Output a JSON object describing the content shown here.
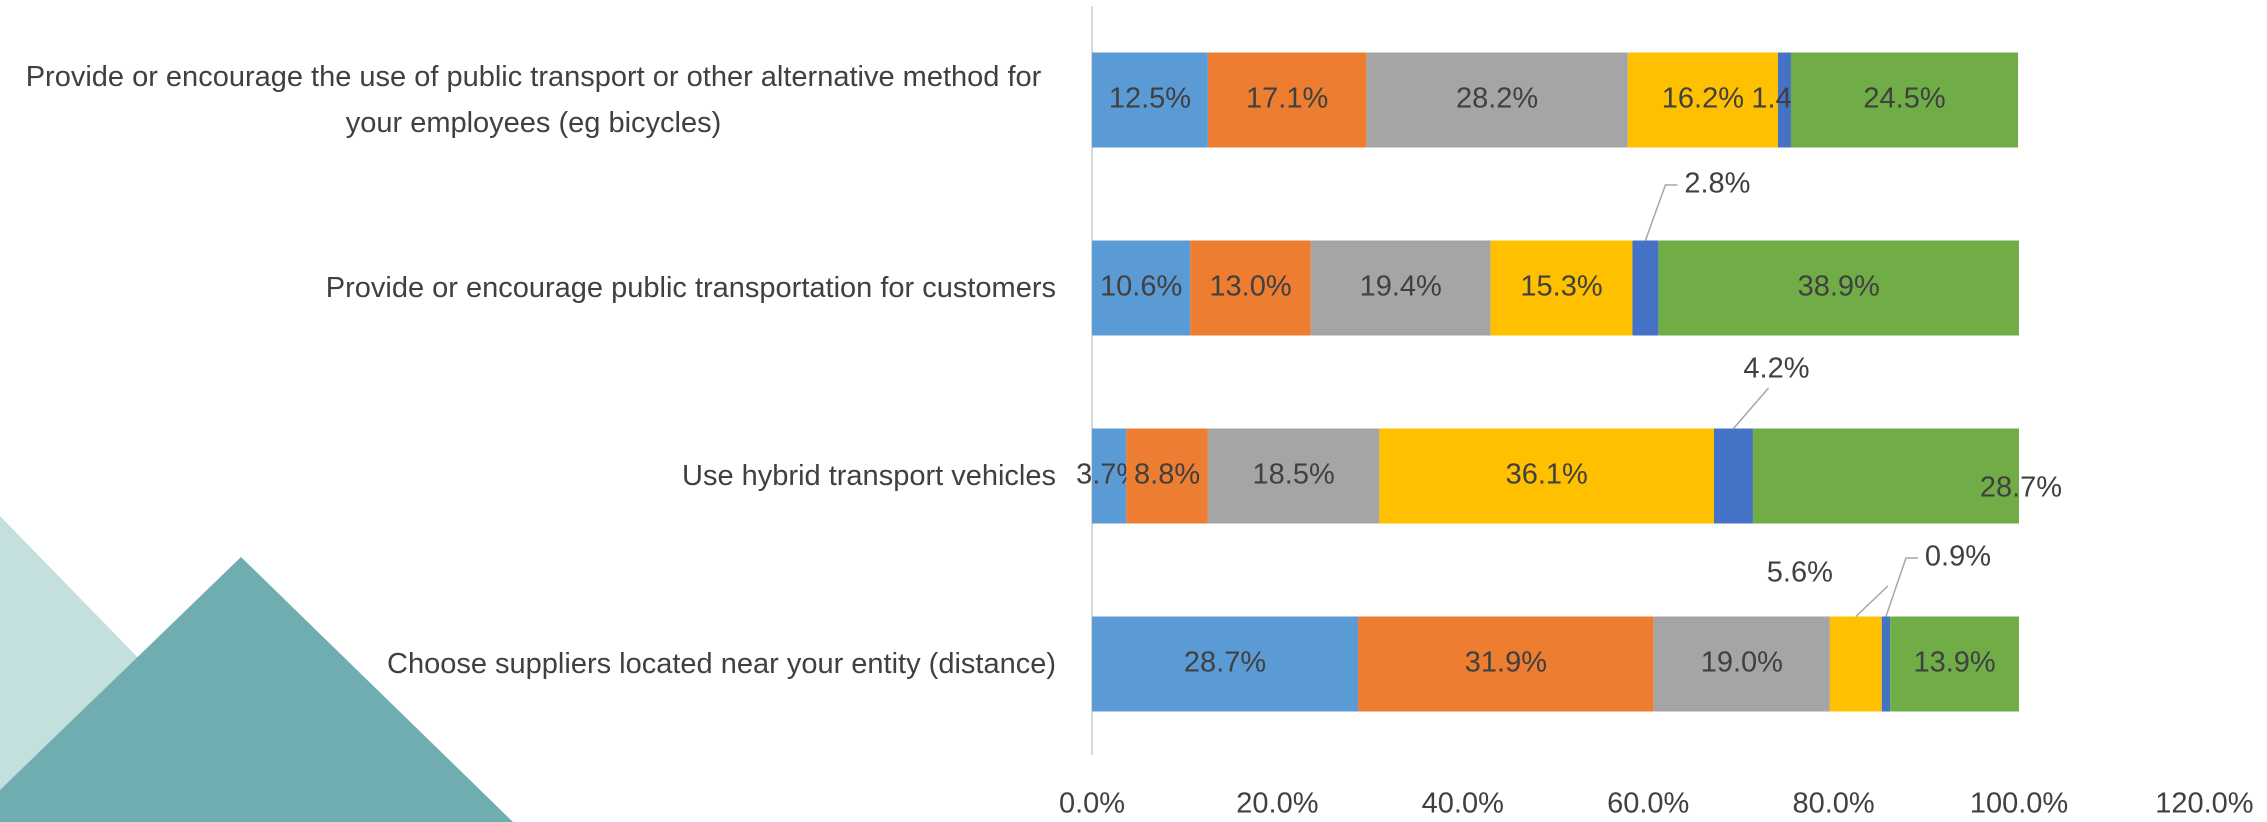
{
  "chart_data": {
    "type": "bar",
    "orientation": "horizontal",
    "stacked": true,
    "categories": [
      "Provide or encourage the use of public transport or other alternative method for your employees (eg bicycles)",
      "Provide or encourage public transportation for customers",
      "Use hybrid transport vehicles",
      "Choose suppliers located near your entity (distance)"
    ],
    "series": [
      {
        "color": "#5b9bd5",
        "values": [
          12.5,
          10.6,
          3.7,
          28.7
        ],
        "value_labels": [
          "12.5%",
          "10.6%",
          "3.7%",
          "28.7%"
        ]
      },
      {
        "color": "#ed7d31",
        "values": [
          17.1,
          13.0,
          8.8,
          31.9
        ],
        "value_labels": [
          "17.1%",
          "13.0%",
          "8.8%",
          "31.9%"
        ]
      },
      {
        "color": "#a5a5a5",
        "values": [
          28.2,
          19.4,
          18.5,
          19.0
        ],
        "value_labels": [
          "28.2%",
          "19.4%",
          "18.5%",
          "19.0%"
        ]
      },
      {
        "color": "#ffc000",
        "values": [
          16.2,
          15.3,
          36.1,
          5.6
        ],
        "value_labels": [
          "16.2%",
          "15.3%",
          "36.1%",
          "5.6%"
        ]
      },
      {
        "color": "#4472c4",
        "values": [
          1.4,
          2.8,
          4.2,
          0.9
        ],
        "value_labels": [
          "1.4%",
          "2.8%",
          "4.2%",
          "0.9%"
        ]
      },
      {
        "color": "#70ad47",
        "values": [
          24.5,
          38.9,
          28.7,
          13.9
        ],
        "value_labels": [
          "24.5%",
          "38.9%",
          "28.7%",
          "13.9%"
        ]
      }
    ],
    "xlim": [
      0,
      120
    ],
    "xticks": [
      {
        "value": 0,
        "label": "0.0%"
      },
      {
        "value": 20,
        "label": "20.0%"
      },
      {
        "value": 40,
        "label": "40.0%"
      },
      {
        "value": 60,
        "label": "60.0%"
      },
      {
        "value": 80,
        "label": "80.0%"
      },
      {
        "value": 100,
        "label": "100.0%"
      },
      {
        "value": 120,
        "label": "120.0%"
      }
    ]
  }
}
